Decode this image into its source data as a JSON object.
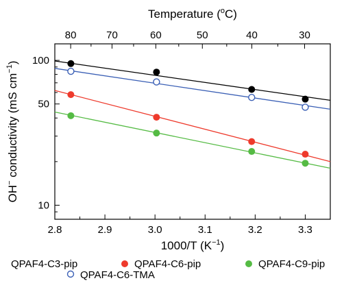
{
  "chart_data": {
    "type": "scatter",
    "title": "",
    "xlabel": "1000/T (K⁻¹)",
    "ylabel": "OH⁻ conductivity (mS cm⁻¹)",
    "top_axis_label": "Temperature (°C)",
    "xlim": [
      2.8,
      3.35
    ],
    "ylim": [
      8,
      130
    ],
    "yscale": "log",
    "grid": false,
    "legend_position": "bottom",
    "x_ticks": [
      2.8,
      2.9,
      3.0,
      3.1,
      3.2,
      3.3
    ],
    "x_tick_labels": [
      "2.8",
      "2.9",
      "3.0",
      "3.1",
      "3.2",
      "3.3"
    ],
    "y_ticks": [
      10,
      50,
      100
    ],
    "y_tick_labels": [
      "10",
      "50",
      "100"
    ],
    "top_ticks": [
      80,
      70,
      60,
      50,
      40,
      30
    ],
    "top_tick_labels": [
      "80",
      "70",
      "60",
      "50",
      "40",
      "30"
    ],
    "series": [
      {
        "name": "QPAF4-C3-pip",
        "color": "#000000",
        "marker": "filled",
        "x": [
          2.832,
          3.003,
          3.193,
          3.3
        ],
        "y": [
          95,
          83,
          63,
          54
        ],
        "fit": [
          [
            2.8,
            99
          ],
          [
            3.35,
            53
          ]
        ]
      },
      {
        "name": "QPAF4-C6-pip",
        "color": "#ee3a2c",
        "marker": "filled",
        "x": [
          2.832,
          3.003,
          3.193,
          3.3
        ],
        "y": [
          58,
          40.5,
          27.5,
          22.5
        ],
        "fit": [
          [
            2.8,
            62
          ],
          [
            3.35,
            20
          ]
        ]
      },
      {
        "name": "QPAF4-C9-pip",
        "color": "#55bb44",
        "marker": "filled",
        "x": [
          2.832,
          3.003,
          3.193,
          3.3
        ],
        "y": [
          41.5,
          31.5,
          23.5,
          19.5
        ],
        "fit": [
          [
            2.8,
            44
          ],
          [
            3.35,
            18
          ]
        ]
      },
      {
        "name": "QPAF4-C6-TMA",
        "color": "#3a5fb5",
        "marker": "open",
        "x": [
          2.832,
          3.003,
          3.193,
          3.3
        ],
        "y": [
          84,
          71,
          55.5,
          47.5
        ],
        "fit": [
          [
            2.8,
            88
          ],
          [
            3.35,
            46
          ]
        ]
      }
    ]
  }
}
